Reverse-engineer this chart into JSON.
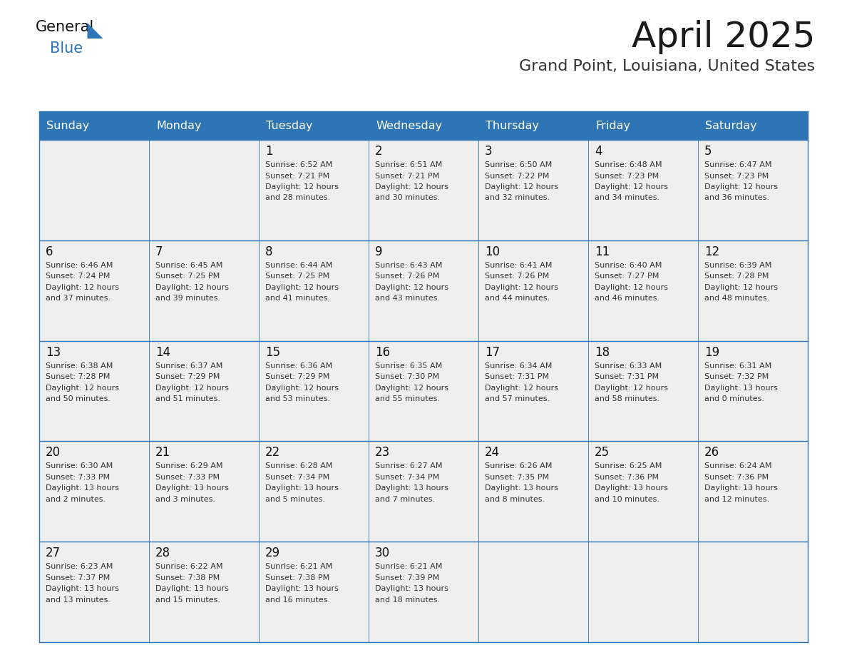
{
  "title": "April 2025",
  "subtitle": "Grand Point, Louisiana, United States",
  "header_bg_color": "#2E75B6",
  "header_text_color": "#FFFFFF",
  "cell_bg_color": "#EFEFEF",
  "day_names": [
    "Sunday",
    "Monday",
    "Tuesday",
    "Wednesday",
    "Thursday",
    "Friday",
    "Saturday"
  ],
  "title_color": "#1a1a1a",
  "subtitle_color": "#333333",
  "day_num_color": "#111111",
  "cell_text_color": "#333333",
  "line_color": "#2E75B6",
  "logo_general_color": "#111111",
  "logo_blue_color": "#2E75B6",
  "logo_triangle_color": "#2E75B6",
  "weeks": [
    [
      {
        "day": null,
        "info": ""
      },
      {
        "day": null,
        "info": ""
      },
      {
        "day": 1,
        "info": "Sunrise: 6:52 AM\nSunset: 7:21 PM\nDaylight: 12 hours\nand 28 minutes."
      },
      {
        "day": 2,
        "info": "Sunrise: 6:51 AM\nSunset: 7:21 PM\nDaylight: 12 hours\nand 30 minutes."
      },
      {
        "day": 3,
        "info": "Sunrise: 6:50 AM\nSunset: 7:22 PM\nDaylight: 12 hours\nand 32 minutes."
      },
      {
        "day": 4,
        "info": "Sunrise: 6:48 AM\nSunset: 7:23 PM\nDaylight: 12 hours\nand 34 minutes."
      },
      {
        "day": 5,
        "info": "Sunrise: 6:47 AM\nSunset: 7:23 PM\nDaylight: 12 hours\nand 36 minutes."
      }
    ],
    [
      {
        "day": 6,
        "info": "Sunrise: 6:46 AM\nSunset: 7:24 PM\nDaylight: 12 hours\nand 37 minutes."
      },
      {
        "day": 7,
        "info": "Sunrise: 6:45 AM\nSunset: 7:25 PM\nDaylight: 12 hours\nand 39 minutes."
      },
      {
        "day": 8,
        "info": "Sunrise: 6:44 AM\nSunset: 7:25 PM\nDaylight: 12 hours\nand 41 minutes."
      },
      {
        "day": 9,
        "info": "Sunrise: 6:43 AM\nSunset: 7:26 PM\nDaylight: 12 hours\nand 43 minutes."
      },
      {
        "day": 10,
        "info": "Sunrise: 6:41 AM\nSunset: 7:26 PM\nDaylight: 12 hours\nand 44 minutes."
      },
      {
        "day": 11,
        "info": "Sunrise: 6:40 AM\nSunset: 7:27 PM\nDaylight: 12 hours\nand 46 minutes."
      },
      {
        "day": 12,
        "info": "Sunrise: 6:39 AM\nSunset: 7:28 PM\nDaylight: 12 hours\nand 48 minutes."
      }
    ],
    [
      {
        "day": 13,
        "info": "Sunrise: 6:38 AM\nSunset: 7:28 PM\nDaylight: 12 hours\nand 50 minutes."
      },
      {
        "day": 14,
        "info": "Sunrise: 6:37 AM\nSunset: 7:29 PM\nDaylight: 12 hours\nand 51 minutes."
      },
      {
        "day": 15,
        "info": "Sunrise: 6:36 AM\nSunset: 7:29 PM\nDaylight: 12 hours\nand 53 minutes."
      },
      {
        "day": 16,
        "info": "Sunrise: 6:35 AM\nSunset: 7:30 PM\nDaylight: 12 hours\nand 55 minutes."
      },
      {
        "day": 17,
        "info": "Sunrise: 6:34 AM\nSunset: 7:31 PM\nDaylight: 12 hours\nand 57 minutes."
      },
      {
        "day": 18,
        "info": "Sunrise: 6:33 AM\nSunset: 7:31 PM\nDaylight: 12 hours\nand 58 minutes."
      },
      {
        "day": 19,
        "info": "Sunrise: 6:31 AM\nSunset: 7:32 PM\nDaylight: 13 hours\nand 0 minutes."
      }
    ],
    [
      {
        "day": 20,
        "info": "Sunrise: 6:30 AM\nSunset: 7:33 PM\nDaylight: 13 hours\nand 2 minutes."
      },
      {
        "day": 21,
        "info": "Sunrise: 6:29 AM\nSunset: 7:33 PM\nDaylight: 13 hours\nand 3 minutes."
      },
      {
        "day": 22,
        "info": "Sunrise: 6:28 AM\nSunset: 7:34 PM\nDaylight: 13 hours\nand 5 minutes."
      },
      {
        "day": 23,
        "info": "Sunrise: 6:27 AM\nSunset: 7:34 PM\nDaylight: 13 hours\nand 7 minutes."
      },
      {
        "day": 24,
        "info": "Sunrise: 6:26 AM\nSunset: 7:35 PM\nDaylight: 13 hours\nand 8 minutes."
      },
      {
        "day": 25,
        "info": "Sunrise: 6:25 AM\nSunset: 7:36 PM\nDaylight: 13 hours\nand 10 minutes."
      },
      {
        "day": 26,
        "info": "Sunrise: 6:24 AM\nSunset: 7:36 PM\nDaylight: 13 hours\nand 12 minutes."
      }
    ],
    [
      {
        "day": 27,
        "info": "Sunrise: 6:23 AM\nSunset: 7:37 PM\nDaylight: 13 hours\nand 13 minutes."
      },
      {
        "day": 28,
        "info": "Sunrise: 6:22 AM\nSunset: 7:38 PM\nDaylight: 13 hours\nand 15 minutes."
      },
      {
        "day": 29,
        "info": "Sunrise: 6:21 AM\nSunset: 7:38 PM\nDaylight: 13 hours\nand 16 minutes."
      },
      {
        "day": 30,
        "info": "Sunrise: 6:21 AM\nSunset: 7:39 PM\nDaylight: 13 hours\nand 18 minutes."
      },
      {
        "day": null,
        "info": ""
      },
      {
        "day": null,
        "info": ""
      },
      {
        "day": null,
        "info": ""
      }
    ]
  ]
}
